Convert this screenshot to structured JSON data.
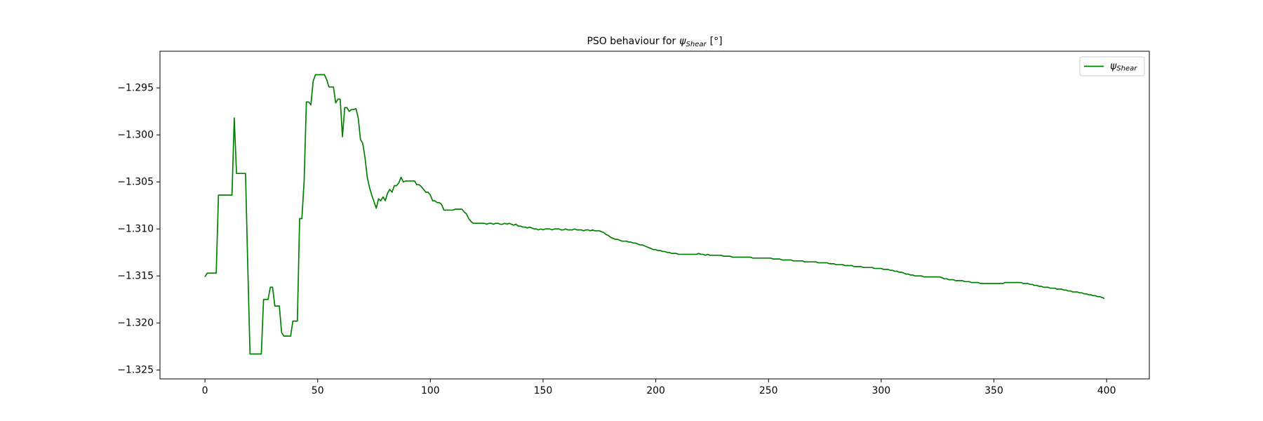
{
  "chart_data": {
    "type": "line",
    "title": "PSO behaviour for",
    "title_symbol": "ψ",
    "title_subscript": "Shear",
    "title_unit": "[°]",
    "xlim": [
      -19.95,
      418.95
    ],
    "xticks": [
      0,
      50,
      100,
      150,
      200,
      250,
      300,
      350,
      400
    ],
    "ylim": [
      -1.32595,
      -1.2911
    ],
    "yticks": [
      {
        "value": -1.325,
        "label": "−1.325"
      },
      {
        "value": -1.32,
        "label": "−1.320"
      },
      {
        "value": -1.315,
        "label": "−1.315"
      },
      {
        "value": -1.31,
        "label": "−1.310"
      },
      {
        "value": -1.305,
        "label": "−1.305"
      },
      {
        "value": -1.3,
        "label": "−1.300"
      },
      {
        "value": -1.295,
        "label": "−1.295"
      }
    ],
    "grid": false,
    "legend": "upper right",
    "series": [
      {
        "name": "ψ",
        "name_subscript": "Shear",
        "color": "#008000",
        "values": [
          -1.3151,
          -1.3147,
          -1.3147,
          -1.3147,
          -1.3147,
          -1.3147,
          -1.3064,
          -1.3064,
          -1.3064,
          -1.3064,
          -1.3064,
          -1.3064,
          -1.3064,
          -1.2982,
          -1.3041,
          -1.3041,
          -1.3041,
          -1.3041,
          -1.3041,
          -1.314,
          -1.3233,
          -1.3233,
          -1.3233,
          -1.3233,
          -1.3233,
          -1.3233,
          -1.3175,
          -1.3175,
          -1.3175,
          -1.3162,
          -1.3162,
          -1.3182,
          -1.3182,
          -1.3182,
          -1.321,
          -1.3214,
          -1.3214,
          -1.3214,
          -1.3214,
          -1.3198,
          -1.3198,
          -1.3198,
          -1.3089,
          -1.3089,
          -1.3049,
          -1.2965,
          -1.2965,
          -1.2968,
          -1.2943,
          -1.2936,
          -1.2936,
          -1.2936,
          -1.2936,
          -1.2936,
          -1.2941,
          -1.2949,
          -1.2949,
          -1.2949,
          -1.2966,
          -1.2962,
          -1.2962,
          -1.3002,
          -1.2971,
          -1.2971,
          -1.2975,
          -1.2973,
          -1.2973,
          -1.2972,
          -1.2982,
          -1.3005,
          -1.3009,
          -1.3024,
          -1.3045,
          -1.3056,
          -1.3064,
          -1.3071,
          -1.3078,
          -1.3068,
          -1.307,
          -1.3066,
          -1.307,
          -1.3062,
          -1.3058,
          -1.3061,
          -1.3054,
          -1.3054,
          -1.3051,
          -1.3045,
          -1.305,
          -1.3049,
          -1.3049,
          -1.3049,
          -1.3049,
          -1.3049,
          -1.3053,
          -1.3053,
          -1.3055,
          -1.3058,
          -1.3061,
          -1.3061,
          -1.3064,
          -1.307,
          -1.307,
          -1.3072,
          -1.3072,
          -1.3074,
          -1.308,
          -1.308,
          -1.308,
          -1.308,
          -1.308,
          -1.3079,
          -1.3079,
          -1.3079,
          -1.3079,
          -1.3082,
          -1.3084,
          -1.3089,
          -1.3092,
          -1.3094,
          -1.3094,
          -1.3094,
          -1.3094,
          -1.3094,
          -1.3094,
          -1.3095,
          -1.3094,
          -1.3094,
          -1.3095,
          -1.3094,
          -1.3094,
          -1.3095,
          -1.3095,
          -1.3094,
          -1.3095,
          -1.3094,
          -1.3095,
          -1.3096,
          -1.3095,
          -1.3097,
          -1.3097,
          -1.3098,
          -1.3098,
          -1.3099,
          -1.3098,
          -1.3099,
          -1.31,
          -1.31,
          -1.3101,
          -1.31,
          -1.3101,
          -1.31,
          -1.31,
          -1.31,
          -1.3101,
          -1.31,
          -1.31,
          -1.31,
          -1.3101,
          -1.3101,
          -1.31,
          -1.3101,
          -1.3101,
          -1.3101,
          -1.31,
          -1.3101,
          -1.3101,
          -1.3101,
          -1.3102,
          -1.3101,
          -1.3101,
          -1.3102,
          -1.3101,
          -1.3102,
          -1.3102,
          -1.3102,
          -1.3103,
          -1.3104,
          -1.3106,
          -1.3107,
          -1.3109,
          -1.311,
          -1.3111,
          -1.3111,
          -1.3112,
          -1.3113,
          -1.3113,
          -1.3113,
          -1.3114,
          -1.3114,
          -1.3115,
          -1.3115,
          -1.3116,
          -1.3117,
          -1.3117,
          -1.3118,
          -1.3119,
          -1.312,
          -1.3121,
          -1.3122,
          -1.3122,
          -1.3123,
          -1.3123,
          -1.3124,
          -1.3124,
          -1.3125,
          -1.3125,
          -1.3126,
          -1.3126,
          -1.3126,
          -1.3127,
          -1.3127,
          -1.3127,
          -1.3127,
          -1.3127,
          -1.3127,
          -1.3127,
          -1.3127,
          -1.3127,
          -1.3126,
          -1.3127,
          -1.3127,
          -1.3128,
          -1.3127,
          -1.3128,
          -1.3128,
          -1.3128,
          -1.3128,
          -1.3128,
          -1.3128,
          -1.3129,
          -1.3129,
          -1.3129,
          -1.3129,
          -1.313,
          -1.313,
          -1.313,
          -1.313,
          -1.313,
          -1.313,
          -1.313,
          -1.313,
          -1.313,
          -1.3131,
          -1.3131,
          -1.3131,
          -1.3131,
          -1.3131,
          -1.3131,
          -1.3131,
          -1.3131,
          -1.3131,
          -1.3132,
          -1.3132,
          -1.3132,
          -1.3132,
          -1.3133,
          -1.3133,
          -1.3133,
          -1.3133,
          -1.3133,
          -1.3134,
          -1.3134,
          -1.3134,
          -1.3134,
          -1.3134,
          -1.3135,
          -1.3135,
          -1.3135,
          -1.3135,
          -1.3135,
          -1.3135,
          -1.3136,
          -1.3136,
          -1.3136,
          -1.3136,
          -1.3136,
          -1.3137,
          -1.3137,
          -1.3137,
          -1.3138,
          -1.3138,
          -1.3138,
          -1.3138,
          -1.3139,
          -1.3139,
          -1.3139,
          -1.3139,
          -1.314,
          -1.314,
          -1.314,
          -1.314,
          -1.3141,
          -1.3141,
          -1.3141,
          -1.3141,
          -1.3141,
          -1.3142,
          -1.3142,
          -1.3142,
          -1.3142,
          -1.3143,
          -1.3143,
          -1.3143,
          -1.3144,
          -1.3144,
          -1.3145,
          -1.3145,
          -1.3146,
          -1.3146,
          -1.3147,
          -1.3148,
          -1.3148,
          -1.3149,
          -1.3149,
          -1.315,
          -1.315,
          -1.315,
          -1.315,
          -1.3151,
          -1.3151,
          -1.3151,
          -1.3151,
          -1.3151,
          -1.3151,
          -1.3151,
          -1.3151,
          -1.3152,
          -1.3153,
          -1.3153,
          -1.3154,
          -1.3154,
          -1.3154,
          -1.3155,
          -1.3155,
          -1.3155,
          -1.3155,
          -1.3156,
          -1.3156,
          -1.3156,
          -1.3157,
          -1.3157,
          -1.3157,
          -1.3157,
          -1.3158,
          -1.3158,
          -1.3158,
          -1.3158,
          -1.3158,
          -1.3158,
          -1.3158,
          -1.3158,
          -1.3158,
          -1.3158,
          -1.3158,
          -1.3157,
          -1.3157,
          -1.3157,
          -1.3157,
          -1.3157,
          -1.3157,
          -1.3157,
          -1.3157,
          -1.3158,
          -1.3158,
          -1.3158,
          -1.3159,
          -1.3159,
          -1.316,
          -1.316,
          -1.3161,
          -1.3161,
          -1.3162,
          -1.3162,
          -1.3162,
          -1.3163,
          -1.3163,
          -1.3163,
          -1.3164,
          -1.3164,
          -1.3164,
          -1.3165,
          -1.3165,
          -1.3166,
          -1.3166,
          -1.3167,
          -1.3167,
          -1.3167,
          -1.3168,
          -1.3168,
          -1.3169,
          -1.3169,
          -1.317,
          -1.317,
          -1.3171,
          -1.3171,
          -1.3172,
          -1.3172,
          -1.3173,
          -1.3174
        ]
      }
    ]
  }
}
